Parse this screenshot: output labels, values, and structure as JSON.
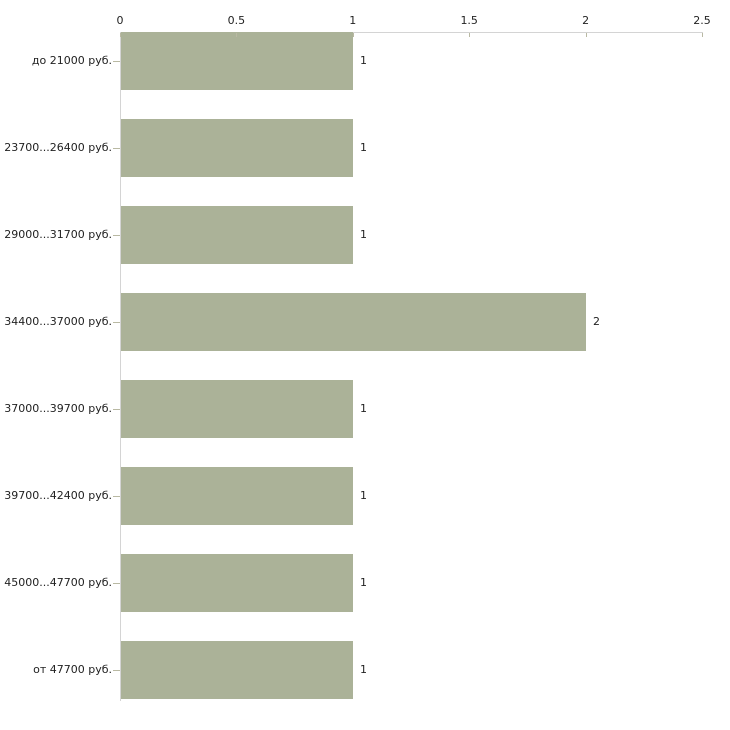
{
  "chart_data": {
    "type": "bar",
    "orientation": "horizontal",
    "axis_position": "top",
    "grid": false,
    "legend": "none",
    "title": "",
    "xlabel": "",
    "ylabel": "",
    "xlim": [
      0,
      2.5
    ],
    "x_ticks": [
      "0",
      "0.5",
      "1",
      "1.5",
      "2",
      "2.5"
    ],
    "x_tick_values": [
      0,
      0.5,
      1,
      1.5,
      2,
      2.5
    ],
    "categories": [
      "до 21000 руб.",
      "23700...26400 руб.",
      "29000...31700 руб.",
      "34400...37000 руб.",
      "37000...39700 руб.",
      "39700...42400 руб.",
      "45000...47700 руб.",
      "от 47700 руб."
    ],
    "values": [
      1,
      1,
      1,
      2,
      1,
      1,
      1,
      1
    ],
    "bar_labels": [
      "1",
      "1",
      "1",
      "2",
      "1",
      "1",
      "1",
      "1"
    ],
    "colors": {
      "bar": "#abb298",
      "axis_line": "#d4d4d4",
      "tick": "#b9b9a3",
      "text": "#222222",
      "background": "#ffffff"
    }
  }
}
